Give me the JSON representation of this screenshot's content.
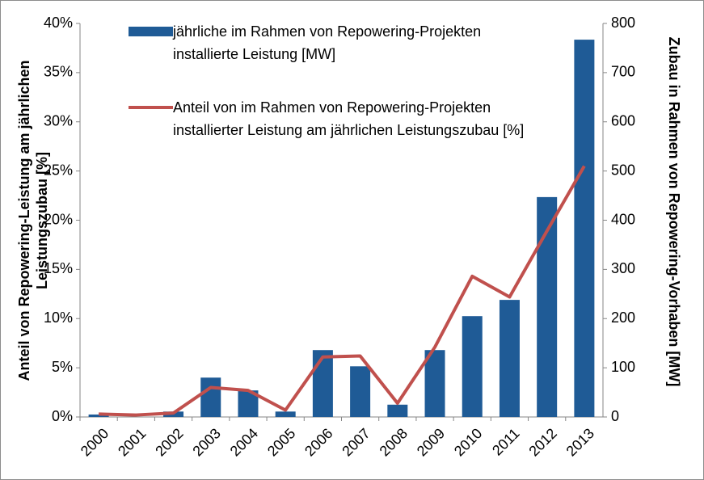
{
  "chart_data": {
    "type": "bar-line",
    "categories": [
      "2000",
      "2001",
      "2002",
      "2003",
      "2004",
      "2005",
      "2006",
      "2007",
      "2008",
      "2009",
      "2010",
      "2011",
      "2012",
      "2013"
    ],
    "series": [
      {
        "name": "jährliche im Rahmen von Repowering-Projekten installierte Leistung [MW]",
        "type": "bar",
        "axis": "y2",
        "color": "#1f5b96",
        "values": [
          5,
          0,
          11,
          80,
          54,
          11,
          136,
          103,
          25,
          136,
          205,
          238,
          447,
          767
        ]
      },
      {
        "name": "Anteil von im Rahmen von Repowering-Projekten installierter Leistung am jährlichen Leistungszubau [%]",
        "type": "line",
        "axis": "y",
        "color": "#c0504d",
        "values": [
          0.3,
          0.2,
          0.4,
          3.0,
          2.7,
          0.7,
          6.1,
          6.2,
          1.4,
          7.1,
          14.3,
          12.2,
          18.9,
          25.5
        ]
      }
    ],
    "y_label": "Anteil von Repowering-Leistung am jährlichen Leistungszubau [%]",
    "y2_label": "Zubau in Rahmen von Repowering-Vorhaben [MW]",
    "ylim": [
      0,
      40
    ],
    "yticks": [
      {
        "value": 0,
        "label": "0%"
      },
      {
        "value": 5,
        "label": "5%"
      },
      {
        "value": 10,
        "label": "10%"
      },
      {
        "value": 15,
        "label": "15%"
      },
      {
        "value": 20,
        "label": "20%"
      },
      {
        "value": 25,
        "label": "25%"
      },
      {
        "value": 30,
        "label": "30%"
      },
      {
        "value": 35,
        "label": "35%"
      },
      {
        "value": 40,
        "label": "40%"
      }
    ],
    "y2lim": [
      0,
      800
    ],
    "y2ticks": [
      0,
      100,
      200,
      300,
      400,
      500,
      600,
      700,
      800
    ],
    "legend": "top-left"
  }
}
